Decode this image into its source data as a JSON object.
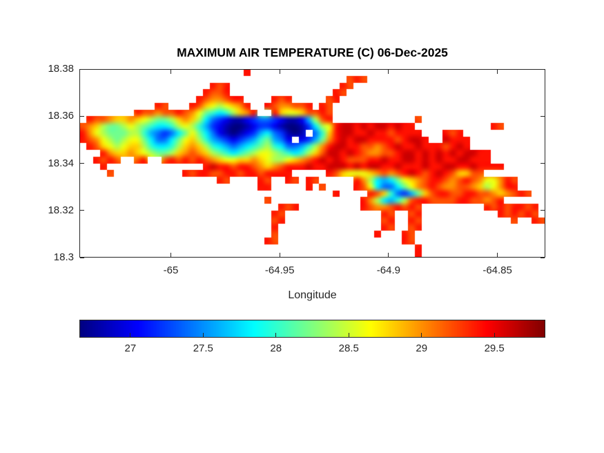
{
  "figure": {
    "background": "#ffffff",
    "axis_color": "#262626",
    "title_color": "#000000"
  },
  "chart_data": {
    "type": "heatmap",
    "title": "MAXIMUM AIR TEMPERATURE (C) 06-Dec-2025",
    "xlabel": "Longitude",
    "xlim": [
      -65.042,
      -64.828
    ],
    "ylim": [
      18.3,
      18.38
    ],
    "x_ticks": {
      "values": [
        -65,
        -64.95,
        -64.9,
        -64.85
      ],
      "labels": [
        "-65",
        "-64.95",
        "-64.9",
        "-64.85"
      ]
    },
    "y_ticks": {
      "values": [
        18.38,
        18.36,
        18.34,
        18.32,
        18.3
      ],
      "labels": [
        "18.38",
        "18.36",
        "18.34",
        "18.32",
        "18.3"
      ]
    },
    "colormap": "jet",
    "clim": [
      26.65,
      29.85
    ],
    "colorbar": {
      "orientation": "horizontal",
      "tick_values": [
        27,
        27.5,
        28,
        28.5,
        29,
        29.5
      ],
      "tick_labels": [
        "27",
        "27.5",
        "28",
        "28.5",
        "29",
        "29.5"
      ]
    },
    "grid": {
      "ncols": 68,
      "nrows": 28,
      "encoding": {
        "chars": "0123456789abcdefg",
        "value_start": 26.6,
        "value_step": 0.2,
        "null_char": "."
      },
      "rows": [
        "........................e...........................................",
        ".......................................ded..........................",
        "...................ede................ed.............................",
        "..................edde...............ed..............................",
        ".................edccdee....ede.....de...............................",
        "...........ed...edba9abce..edccdde.ed................................",
        "........eddcddedca87679bce..ebaabdded................................",
        ".eddcbbcba9889bcb964321123443211259de............d...................",
        "dcb9889a9876679a97532100123321001369aeffefeffefee...........ed.....",
        "eca9888997543468a8642101235643101 47beffeefeedeeee...ede...........",
        "edca989aa864468ab97543234578542 2358cefeffeeeedeffe..feee..........",
        ".edba9abb976679bcb97654567897644579ceffeeddcdefeefeeedefe..........",
        "...ecbbcba9889bcdcb9876789aa987679bdffefedccddeffefefefeffee.......",
        "..eded..de..dedededcbaabbcba99abcdefefedddeefeeffefefeeffeee.......",
        "...e..............efeedeedcbcdeeefeefffefeffeefeeefeeffeefeeee.....",
        "....d..........edeeddeedeedeeee.....edbaaabcdcdefedefedbbdd.....",
        "....................ed....ed..ed.ed.....ec96568abcdeedcdedcaaced....",
        "..........................ee.....e.d....eda64468acdedccddcb9acee....",
        ".....................................e....edb74358bdeeddeeddcbcded....",
        "...........................d.............ec96579deeddddeeddcde......",
        ".............................ede.........edccdeded.........ededeede.",
        "............................ed..............ed..de...........ededed.",
        "............................de..............de..ed.............d..ed.",
        "............................e...............ed..de..................",
        "............................d..............e...ed..................",
        "...........................ed..................ed..................",
        ".................................................e..................",
        ".................................................e.................."
      ]
    }
  }
}
